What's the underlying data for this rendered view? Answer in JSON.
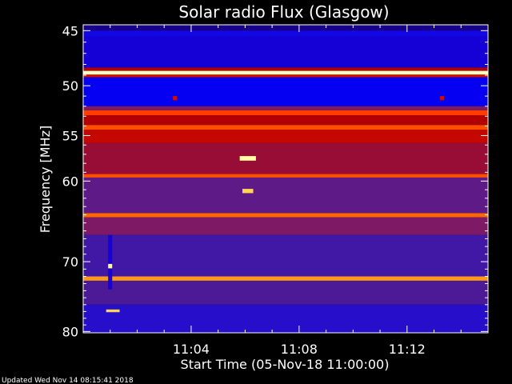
{
  "chart_data": {
    "type": "heatmap",
    "title": "Solar radio Flux (Glasgow)",
    "ylabel": "Frequency [MHz]",
    "xlabel": "Start Time (05-Nov-18 11:00:00)",
    "footer": "Updated Wed Nov 14 08:15:41 2018",
    "x_range_minutes": [
      0,
      15
    ],
    "y_range_mhz": [
      44.5,
      80.2
    ],
    "y_scale": "log",
    "y_inverted": true,
    "x_ticks": [
      {
        "label": "11:04",
        "minute": 4
      },
      {
        "label": "11:08",
        "minute": 8
      },
      {
        "label": "11:12",
        "minute": 12
      }
    ],
    "y_ticks": [
      {
        "label": "45",
        "mhz": 45
      },
      {
        "label": "50",
        "mhz": 50
      },
      {
        "label": "55",
        "mhz": 55
      },
      {
        "label": "60",
        "mhz": 60
      },
      {
        "label": "70",
        "mhz": 70
      },
      {
        "label": "80",
        "mhz": 80
      }
    ],
    "y_minor_ticks": [
      46,
      47,
      48,
      49,
      51,
      52,
      53,
      54,
      56,
      57,
      58,
      59,
      61,
      62,
      63,
      64,
      65,
      66,
      67,
      68,
      69,
      71,
      72,
      73,
      74,
      75,
      76,
      77,
      78,
      79
    ],
    "x_minor_ticks": [
      1,
      2,
      3,
      5,
      6,
      7,
      9,
      10,
      11,
      13,
      14
    ],
    "colormap": [
      "#000000",
      "#2000c0",
      "#0000ff",
      "#4a1a9a",
      "#7a1a6a",
      "#b40000",
      "#ff2000",
      "#ff8000",
      "#ffff80",
      "#ffffff"
    ],
    "bands": [
      {
        "from_mhz": 44.5,
        "to_mhz": 45.0,
        "level": 0.08
      },
      {
        "from_mhz": 45.0,
        "to_mhz": 45.5,
        "level": 0.25
      },
      {
        "from_mhz": 45.5,
        "to_mhz": 48.3,
        "level": 0.15
      },
      {
        "from_mhz": 48.3,
        "to_mhz": 48.6,
        "level": 0.55
      },
      {
        "from_mhz": 48.6,
        "to_mhz": 48.95,
        "level": 0.95
      },
      {
        "from_mhz": 48.95,
        "to_mhz": 49.2,
        "level": 0.6
      },
      {
        "from_mhz": 49.2,
        "to_mhz": 52.0,
        "level": 0.2
      },
      {
        "from_mhz": 52.0,
        "to_mhz": 52.4,
        "level": 0.45
      },
      {
        "from_mhz": 52.4,
        "to_mhz": 52.9,
        "level": 0.7
      },
      {
        "from_mhz": 52.9,
        "to_mhz": 53.9,
        "level": 0.55
      },
      {
        "from_mhz": 53.9,
        "to_mhz": 54.4,
        "level": 0.72
      },
      {
        "from_mhz": 54.4,
        "to_mhz": 55.8,
        "level": 0.58
      },
      {
        "from_mhz": 55.8,
        "to_mhz": 59.2,
        "level": 0.5
      },
      {
        "from_mhz": 59.2,
        "to_mhz": 59.6,
        "level": 0.72
      },
      {
        "from_mhz": 59.6,
        "to_mhz": 63.8,
        "level": 0.38
      },
      {
        "from_mhz": 63.8,
        "to_mhz": 64.3,
        "level": 0.75
      },
      {
        "from_mhz": 64.3,
        "to_mhz": 66.5,
        "level": 0.45
      },
      {
        "from_mhz": 66.5,
        "to_mhz": 72.0,
        "level": 0.32
      },
      {
        "from_mhz": 72.0,
        "to_mhz": 72.6,
        "level": 0.8
      },
      {
        "from_mhz": 72.6,
        "to_mhz": 76.0,
        "level": 0.34
      },
      {
        "from_mhz": 76.0,
        "to_mhz": 80.2,
        "level": 0.28
      }
    ],
    "features": [
      {
        "minute": 1.0,
        "mhz_from": 66.5,
        "mhz_to": 73.8,
        "level": 0.15,
        "width_min": 0.15
      },
      {
        "minute": 1.0,
        "mhz_from": 70.3,
        "mhz_to": 70.9,
        "level": 0.9,
        "width_min": 0.15
      },
      {
        "minute": 6.1,
        "mhz_from": 57.2,
        "mhz_to": 57.7,
        "level": 0.92,
        "width_min": 0.6
      },
      {
        "minute": 6.1,
        "mhz_from": 60.9,
        "mhz_to": 61.4,
        "level": 0.85,
        "width_min": 0.4
      },
      {
        "minute": 1.1,
        "mhz_from": 76.7,
        "mhz_to": 77.1,
        "level": 0.85,
        "width_min": 0.5
      },
      {
        "minute": 3.4,
        "mhz_from": 51.0,
        "mhz_to": 51.4,
        "level": 0.6,
        "width_min": 0.15
      },
      {
        "minute": 13.3,
        "mhz_from": 51.0,
        "mhz_to": 51.4,
        "level": 0.6,
        "width_min": 0.15
      }
    ]
  }
}
